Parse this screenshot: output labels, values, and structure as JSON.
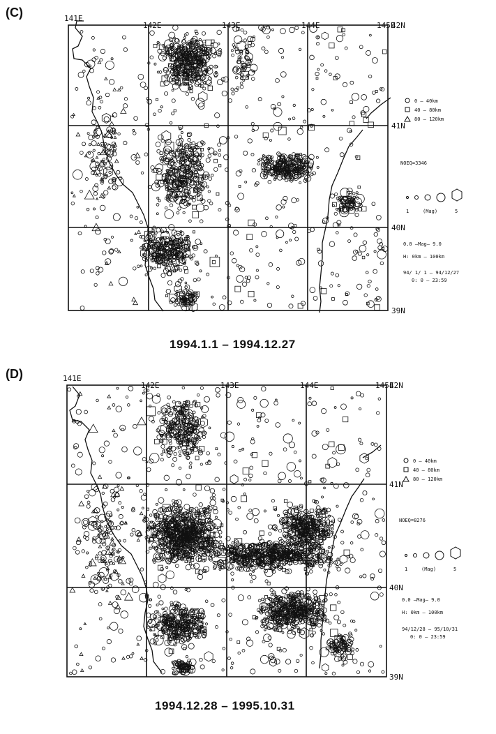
{
  "panels": [
    {
      "letter": "(C)",
      "period": "1994.1.1  – 1994.12.27",
      "lon_ticks": [
        "141E",
        "142E",
        "143E",
        "144E",
        "145E"
      ],
      "lat_ticks": [
        "42N",
        "41N",
        "40N",
        "39N"
      ],
      "legend": {
        "depth_classes": [
          {
            "label": "0 — 40km",
            "symbol": "circle"
          },
          {
            "label": "40 — 80km",
            "symbol": "square"
          },
          {
            "label": "80 — 120km",
            "symbol": "triangle"
          }
        ],
        "event_count": "NOEQ=3346",
        "mag_min": "1",
        "mag_label": "(Mag)",
        "mag_max": "5",
        "mag_range": "0.0 —Mag— 9.0",
        "depth_range": "H: 0km — 100km",
        "date_range": "94/ 1/ 1 — 94/12/27",
        "time_range": "0: 0 —    23:59"
      }
    },
    {
      "letter": "(D)",
      "period": "1994.12.28  – 1995.10.31",
      "lon_ticks": [
        "141E",
        "142E",
        "143E",
        "144E",
        "145E"
      ],
      "lat_ticks": [
        "42N",
        "41N",
        "40N",
        "39N"
      ],
      "legend": {
        "depth_classes": [
          {
            "label": "0 — 40km",
            "symbol": "circle"
          },
          {
            "label": "40 — 80km",
            "symbol": "square"
          },
          {
            "label": "80 — 120km",
            "symbol": "triangle"
          }
        ],
        "event_count": "NOEQ=8276",
        "mag_min": "1",
        "mag_label": "(Mag)",
        "mag_max": "5",
        "mag_range": "0.0 —Mag— 9.0",
        "depth_range": "H: 0km — 100km",
        "date_range": "94/12/28 — 95/10/31",
        "time_range": "0: 0 —    23:59"
      }
    }
  ],
  "colors": {
    "ink": "#111111",
    "background": "#ffffff"
  }
}
